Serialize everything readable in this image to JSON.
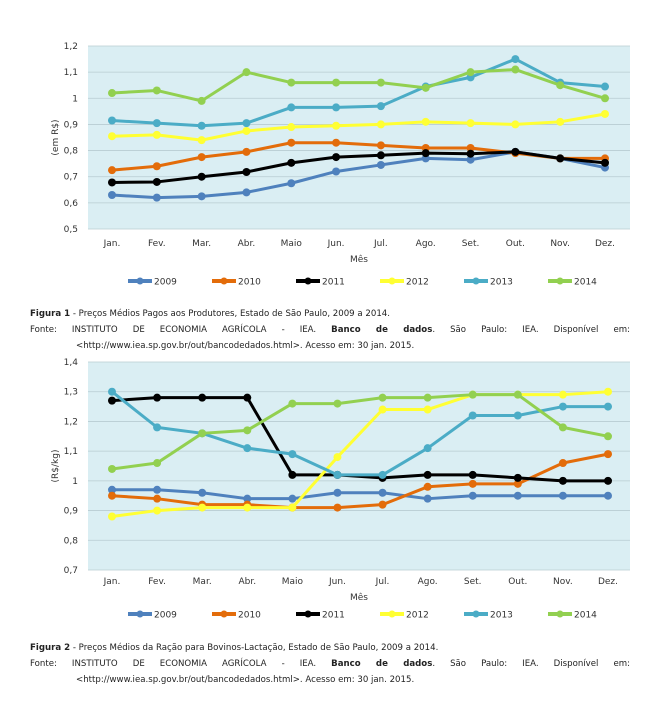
{
  "chart_data": [
    {
      "type": "line",
      "title": "",
      "xlabel": "Mês",
      "ylabel": "(em R$)",
      "ylim": [
        0.5,
        1.2
      ],
      "yticks": [
        "0,5",
        "0,6",
        "0,7",
        "0,8",
        "0,9",
        "1",
        "1,1",
        "1,2"
      ],
      "ytick_values": [
        0.5,
        0.6,
        0.7,
        0.8,
        0.9,
        1.0,
        1.1,
        1.2
      ],
      "grid": true,
      "legend": "bottom",
      "categories": [
        "Jan.",
        "Fev.",
        "Mar.",
        "Abr.",
        "Maio",
        "Jun.",
        "Jul.",
        "Ago.",
        "Set.",
        "Out.",
        "Nov.",
        "Dez."
      ],
      "series": [
        {
          "name": "2009",
          "color": "#4f81bd",
          "values": [
            0.63,
            0.62,
            0.625,
            0.64,
            0.675,
            0.72,
            0.745,
            0.77,
            0.765,
            0.795,
            0.77,
            0.735
          ]
        },
        {
          "name": "2010",
          "color": "#e36c0a",
          "values": [
            0.725,
            0.74,
            0.775,
            0.795,
            0.83,
            0.83,
            0.82,
            0.81,
            0.81,
            0.79,
            0.77,
            0.77
          ]
        },
        {
          "name": "2011",
          "color": "#000000",
          "values": [
            0.678,
            0.68,
            0.7,
            0.718,
            0.753,
            0.775,
            0.782,
            0.79,
            0.788,
            0.795,
            0.77,
            0.753
          ]
        },
        {
          "name": "2012",
          "color": "#ffff33",
          "values": [
            0.855,
            0.86,
            0.84,
            0.875,
            0.89,
            0.895,
            0.9,
            0.91,
            0.905,
            0.9,
            0.91,
            0.94
          ]
        },
        {
          "name": "2013",
          "color": "#4bacc6",
          "values": [
            0.915,
            0.905,
            0.895,
            0.905,
            0.965,
            0.965,
            0.97,
            1.045,
            1.08,
            1.15,
            1.06,
            1.045
          ]
        },
        {
          "name": "2014",
          "color": "#92d050",
          "values": [
            1.02,
            1.03,
            0.99,
            1.1,
            1.06,
            1.06,
            1.06,
            1.04,
            1.1,
            1.11,
            1.05,
            1.0
          ]
        }
      ]
    },
    {
      "type": "line",
      "title": "",
      "xlabel": "Mês",
      "ylabel": "(R$/kg)",
      "ylim": [
        0.7,
        1.4
      ],
      "yticks": [
        "0,7",
        "0,8",
        "0,9",
        "1",
        "1,1",
        "1,2",
        "1,3",
        "1,4"
      ],
      "ytick_values": [
        0.7,
        0.8,
        0.9,
        1.0,
        1.1,
        1.2,
        1.3,
        1.4
      ],
      "grid": true,
      "legend": "bottom",
      "categories": [
        "Jan.",
        "Fev.",
        "Mar.",
        "Abr.",
        "Maio",
        "Jun.",
        "Jul.",
        "Ago.",
        "Set.",
        "Out.",
        "Nov.",
        "Dez."
      ],
      "series": [
        {
          "name": "2009",
          "color": "#4f81bd",
          "values": [
            0.97,
            0.97,
            0.96,
            0.94,
            0.94,
            0.96,
            0.96,
            0.94,
            0.95,
            0.95,
            0.95,
            0.95
          ]
        },
        {
          "name": "2010",
          "color": "#e36c0a",
          "values": [
            0.95,
            0.94,
            0.92,
            0.92,
            0.91,
            0.91,
            0.92,
            0.98,
            0.99,
            0.99,
            1.06,
            1.09
          ]
        },
        {
          "name": "2011",
          "color": "#000000",
          "values": [
            1.27,
            1.28,
            1.28,
            1.28,
            1.02,
            1.02,
            1.01,
            1.02,
            1.02,
            1.01,
            1.0,
            1.0
          ]
        },
        {
          "name": "2012",
          "color": "#ffff33",
          "values": [
            0.88,
            0.9,
            0.91,
            0.91,
            0.91,
            1.08,
            1.24,
            1.24,
            1.29,
            1.29,
            1.29,
            1.3
          ]
        },
        {
          "name": "2013",
          "color": "#4bacc6",
          "values": [
            1.3,
            1.18,
            1.16,
            1.11,
            1.09,
            1.02,
            1.02,
            1.11,
            1.22,
            1.22,
            1.25,
            1.25
          ]
        },
        {
          "name": "2014",
          "color": "#92d050",
          "values": [
            1.04,
            1.06,
            1.16,
            1.17,
            1.26,
            1.26,
            1.28,
            1.28,
            1.29,
            1.29,
            1.18,
            1.15
          ]
        }
      ]
    }
  ],
  "captions": [
    {
      "label": "Figura 1",
      "title": " - Preços Médios Pagos aos Produtores, Estado de São Paulo, 2009 a 2014.",
      "source_prefix": "Fonte: INSTITUTO DE ECONOMIA AGRÍCOLA - IEA. ",
      "source_bold": "Banco de dados",
      "source_rest": ". São Paulo: IEA. Disponível em: <http://www.iea.sp.gov.br/out/bancodedados.html>. Acesso em: 30 jan. 2015."
    },
    {
      "label": "Figura 2",
      "title": " - Preços Médios da Ração para Bovinos-Lactação, Estado de São Paulo, 2009 a 2014.",
      "source_prefix": "Fonte: INSTITUTO DE ECONOMIA AGRÍCOLA - IEA. ",
      "source_bold": "Banco de dados",
      "source_rest": ". São Paulo: IEA. Disponível em: <http://www.iea.sp.gov.br/out/bancodedados.html>. Acesso em: 30 jan. 2015."
    }
  ]
}
